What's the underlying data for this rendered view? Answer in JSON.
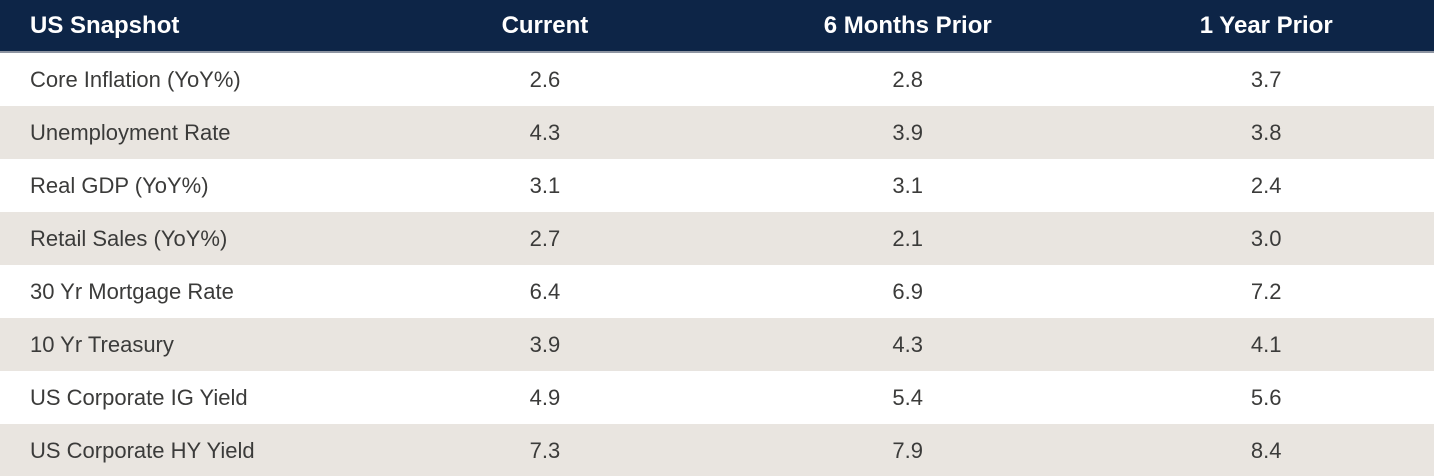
{
  "table": {
    "title": "US Snapshot",
    "columns": [
      "Current",
      "6 Months Prior",
      "1 Year Prior"
    ],
    "rows": [
      {
        "label": "Core Inflation (YoY%)",
        "values": [
          "2.6",
          "2.8",
          "3.7"
        ]
      },
      {
        "label": "Unemployment Rate",
        "values": [
          "4.3",
          "3.9",
          "3.8"
        ]
      },
      {
        "label": "Real GDP (YoY%)",
        "values": [
          "3.1",
          "3.1",
          "2.4"
        ]
      },
      {
        "label": "Retail Sales (YoY%)",
        "values": [
          "2.7",
          "2.1",
          "3.0"
        ]
      },
      {
        "label": "30 Yr Mortgage Rate",
        "values": [
          "6.4",
          "6.9",
          "7.2"
        ]
      },
      {
        "label": "10 Yr Treasury",
        "values": [
          "3.9",
          "4.3",
          "4.1"
        ]
      },
      {
        "label": "US Corporate IG Yield",
        "values": [
          "4.9",
          "5.4",
          "5.6"
        ]
      },
      {
        "label": "US Corporate HY Yield",
        "values": [
          "7.3",
          "7.9",
          "8.4"
        ]
      }
    ]
  },
  "colors": {
    "header_bg": "#0d2547",
    "header_text": "#ffffff",
    "header_border": "#8d94a1",
    "row_bg": "#ffffff",
    "row_alt_bg": "#e9e5e0",
    "body_text": "#3b3b3a"
  },
  "chart_data": {
    "type": "table",
    "title": "US Snapshot",
    "columns": [
      "US Snapshot",
      "Current",
      "6 Months Prior",
      "1 Year Prior"
    ],
    "rows": [
      [
        "Core Inflation (YoY%)",
        2.6,
        2.8,
        3.7
      ],
      [
        "Unemployment Rate",
        4.3,
        3.9,
        3.8
      ],
      [
        "Real GDP (YoY%)",
        3.1,
        3.1,
        2.4
      ],
      [
        "Retail Sales (YoY%)",
        2.7,
        2.1,
        3.0
      ],
      [
        "30 Yr Mortgage Rate",
        6.4,
        6.9,
        7.2
      ],
      [
        "10 Yr Treasury",
        3.9,
        4.3,
        4.1
      ],
      [
        "US Corporate IG Yield",
        4.9,
        5.4,
        5.6
      ],
      [
        "US Corporate HY Yield",
        7.3,
        7.9,
        8.4
      ]
    ]
  }
}
